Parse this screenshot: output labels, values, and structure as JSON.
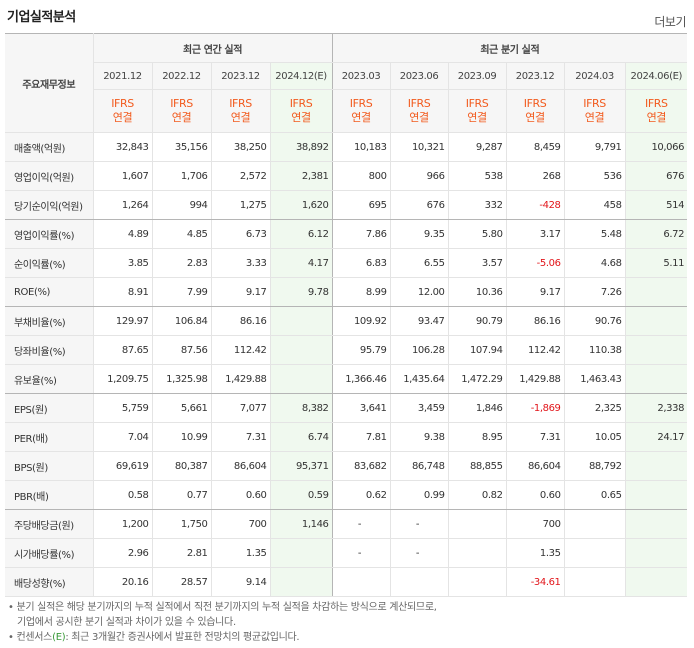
{
  "title": "기업실적분석",
  "more_label": "더보기",
  "header": {
    "row_label": "주요재무정보",
    "annual_group": "최근 연간 실적",
    "quarter_group": "최근 분기 실적",
    "periods": [
      "2021.12",
      "2022.12",
      "2023.12",
      "2024.12(E)",
      "2023.03",
      "2023.06",
      "2023.09",
      "2023.12",
      "2024.03",
      "2024.06(E)"
    ],
    "standard": "IFRS",
    "basis": "연결"
  },
  "rows": [
    {
      "label": "매출액(억원)",
      "values": [
        "32,843",
        "35,156",
        "38,250",
        "38,892",
        "10,183",
        "10,321",
        "9,287",
        "8,459",
        "9,791",
        "10,066"
      ]
    },
    {
      "label": "영업이익(억원)",
      "values": [
        "1,607",
        "1,706",
        "2,572",
        "2,381",
        "800",
        "966",
        "538",
        "268",
        "536",
        "676"
      ]
    },
    {
      "label": "당기순이익(억원)",
      "values": [
        "1,264",
        "994",
        "1,275",
        "1,620",
        "695",
        "676",
        "332",
        "-428",
        "458",
        "514"
      ]
    },
    {
      "label": "영업이익률(%)",
      "values": [
        "4.89",
        "4.85",
        "6.73",
        "6.12",
        "7.86",
        "9.35",
        "5.80",
        "3.17",
        "5.48",
        "6.72"
      ]
    },
    {
      "label": "순이익률(%)",
      "values": [
        "3.85",
        "2.83",
        "3.33",
        "4.17",
        "6.83",
        "6.55",
        "3.57",
        "-5.06",
        "4.68",
        "5.11"
      ]
    },
    {
      "label": "ROE(%)",
      "values": [
        "8.91",
        "7.99",
        "9.17",
        "9.78",
        "8.99",
        "12.00",
        "10.36",
        "9.17",
        "7.26",
        ""
      ]
    },
    {
      "label": "부채비율(%)",
      "values": [
        "129.97",
        "106.84",
        "86.16",
        "",
        "109.92",
        "93.47",
        "90.79",
        "86.16",
        "90.76",
        ""
      ]
    },
    {
      "label": "당좌비율(%)",
      "values": [
        "87.65",
        "87.56",
        "112.42",
        "",
        "95.79",
        "106.28",
        "107.94",
        "112.42",
        "110.38",
        ""
      ]
    },
    {
      "label": "유보율(%)",
      "values": [
        "1,209.75",
        "1,325.98",
        "1,429.88",
        "",
        "1,366.46",
        "1,435.64",
        "1,472.29",
        "1,429.88",
        "1,463.43",
        ""
      ]
    },
    {
      "label": "EPS(원)",
      "values": [
        "5,759",
        "5,661",
        "7,077",
        "8,382",
        "3,641",
        "3,459",
        "1,846",
        "-1,869",
        "2,325",
        "2,338"
      ]
    },
    {
      "label": "PER(배)",
      "values": [
        "7.04",
        "10.99",
        "7.31",
        "6.74",
        "7.81",
        "9.38",
        "8.95",
        "7.31",
        "10.05",
        "24.17"
      ]
    },
    {
      "label": "BPS(원)",
      "values": [
        "69,619",
        "80,387",
        "86,604",
        "95,371",
        "83,682",
        "86,748",
        "88,855",
        "86,604",
        "88,792",
        ""
      ]
    },
    {
      "label": "PBR(배)",
      "values": [
        "0.58",
        "0.77",
        "0.60",
        "0.59",
        "0.62",
        "0.99",
        "0.82",
        "0.60",
        "0.65",
        ""
      ]
    },
    {
      "label": "주당배당금(원)",
      "values": [
        "1,200",
        "1,750",
        "700",
        "1,146",
        "-",
        "-",
        "",
        "700",
        "",
        ""
      ]
    },
    {
      "label": "시가배당률(%)",
      "values": [
        "2.96",
        "2.81",
        "1.35",
        "",
        "-",
        "-",
        "",
        "1.35",
        "",
        ""
      ]
    },
    {
      "label": "배당성향(%)",
      "values": [
        "20.16",
        "28.57",
        "9.14",
        "",
        "",
        "",
        "",
        "-34.61",
        "",
        ""
      ]
    }
  ],
  "notes": {
    "line1": "분기 실적은 해당 분기까지의 누적 실적에서 직전 분기까지의 누적 실적을 차감하는 방식으로 계산되므로,",
    "line2": "기업에서 공시한 분기 실적과 차이가 있을 수 있습니다.",
    "line3_prefix": "컨센서스",
    "line3_mark": "(E)",
    "line3_suffix": ": 최근 3개월간 증권사에서 발표한 전망치의 평균값입니다."
  },
  "colors": {
    "ifrs": "#f25a1d",
    "negative": "#e2161b",
    "estimate_bg": "#f0f9ef"
  }
}
